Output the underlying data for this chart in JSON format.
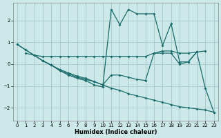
{
  "xlabel": "Humidex (Indice chaleur)",
  "background_color": "#cce8e8",
  "grid_color": "#aacccc",
  "line_color": "#1a6b6b",
  "xlim": [
    -0.5,
    23.5
  ],
  "ylim": [
    -2.6,
    2.8
  ],
  "yticks": [
    -2,
    -1,
    0,
    1,
    2
  ],
  "xticks": [
    0,
    1,
    2,
    3,
    4,
    5,
    6,
    7,
    8,
    9,
    10,
    11,
    12,
    13,
    14,
    15,
    16,
    17,
    18,
    19,
    20,
    21,
    22,
    23
  ],
  "line1_x": [
    0,
    1,
    2,
    3,
    4,
    5,
    6,
    7,
    8,
    9,
    10,
    11,
    12,
    13,
    14,
    15,
    16,
    17,
    18,
    19,
    20,
    21,
    22,
    23
  ],
  "line1_y": [
    0.9,
    0.65,
    0.4,
    0.15,
    -0.05,
    -0.25,
    -0.4,
    -0.55,
    -0.65,
    -0.8,
    -0.95,
    -1.1,
    -1.2,
    -1.35,
    -1.45,
    -1.55,
    -1.65,
    -1.75,
    -1.85,
    -1.95,
    -2.0,
    -2.05,
    -2.1,
    -2.2
  ],
  "line2_x": [
    1,
    2,
    3,
    4,
    5,
    6,
    7,
    8,
    9,
    10,
    11,
    12,
    13,
    14,
    15,
    16,
    17,
    18,
    19,
    20,
    21,
    22
  ],
  "line2_y": [
    0.5,
    0.4,
    0.35,
    0.35,
    0.35,
    0.35,
    0.35,
    0.35,
    0.35,
    0.35,
    0.35,
    0.35,
    0.35,
    0.35,
    0.35,
    0.5,
    0.6,
    0.6,
    0.5,
    0.5,
    0.55,
    0.6
  ],
  "line3_x": [
    0,
    1,
    2,
    3,
    4,
    5,
    6,
    7,
    8,
    9,
    10,
    11,
    12,
    13,
    14,
    15,
    16,
    17,
    18,
    19,
    20,
    21
  ],
  "line3_y": [
    0.9,
    0.65,
    0.4,
    0.15,
    -0.05,
    -0.3,
    -0.5,
    -0.65,
    -0.75,
    -0.95,
    -1.05,
    2.5,
    1.8,
    2.5,
    2.3,
    2.3,
    2.3,
    0.85,
    1.85,
    0.1,
    0.1,
    0.55
  ],
  "line4_x": [
    3,
    4,
    5,
    6,
    7,
    8,
    9,
    10,
    11,
    12,
    13,
    14,
    15,
    16,
    17,
    18,
    19,
    20,
    21,
    22,
    23
  ],
  "line4_y": [
    0.15,
    -0.05,
    -0.3,
    -0.45,
    -0.6,
    -0.7,
    -0.8,
    -0.95,
    -0.5,
    -0.5,
    -0.6,
    -0.7,
    -0.75,
    0.5,
    0.5,
    0.5,
    0.0,
    0.1,
    0.55,
    -1.1,
    -2.2
  ]
}
